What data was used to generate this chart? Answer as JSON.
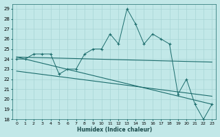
{
  "xlabel": "Humidex (Indice chaleur)",
  "xlim": [
    -0.5,
    23.5
  ],
  "ylim": [
    18,
    29.5
  ],
  "yticks": [
    18,
    19,
    20,
    21,
    22,
    23,
    24,
    25,
    26,
    27,
    28,
    29
  ],
  "xticks": [
    0,
    1,
    2,
    3,
    4,
    5,
    6,
    7,
    8,
    9,
    10,
    11,
    12,
    13,
    14,
    15,
    16,
    17,
    18,
    19,
    20,
    21,
    22,
    23
  ],
  "background_color": "#c2e8e8",
  "grid_color": "#a8d4d4",
  "line_color": "#1a6b6b",
  "main_x": [
    0,
    1,
    2,
    3,
    4,
    5,
    6,
    7,
    8,
    9,
    10,
    11,
    12,
    13,
    14,
    15,
    16,
    17,
    18,
    19,
    20,
    21,
    22,
    23
  ],
  "main_y": [
    24,
    24,
    24.5,
    24.5,
    24.5,
    22.5,
    23,
    23,
    24.5,
    25,
    25,
    26.5,
    25.5,
    29,
    27.5,
    25.5,
    26.5,
    26,
    25.5,
    20.5,
    22,
    19.5,
    18,
    19.5
  ],
  "trend1_x": [
    0,
    23
  ],
  "trend1_y": [
    24.2,
    23.7
  ],
  "trend2_x": [
    0,
    23
  ],
  "trend2_y": [
    24.2,
    19.5
  ],
  "trend3_x": [
    0,
    23
  ],
  "trend3_y": [
    22.8,
    20.3
  ]
}
